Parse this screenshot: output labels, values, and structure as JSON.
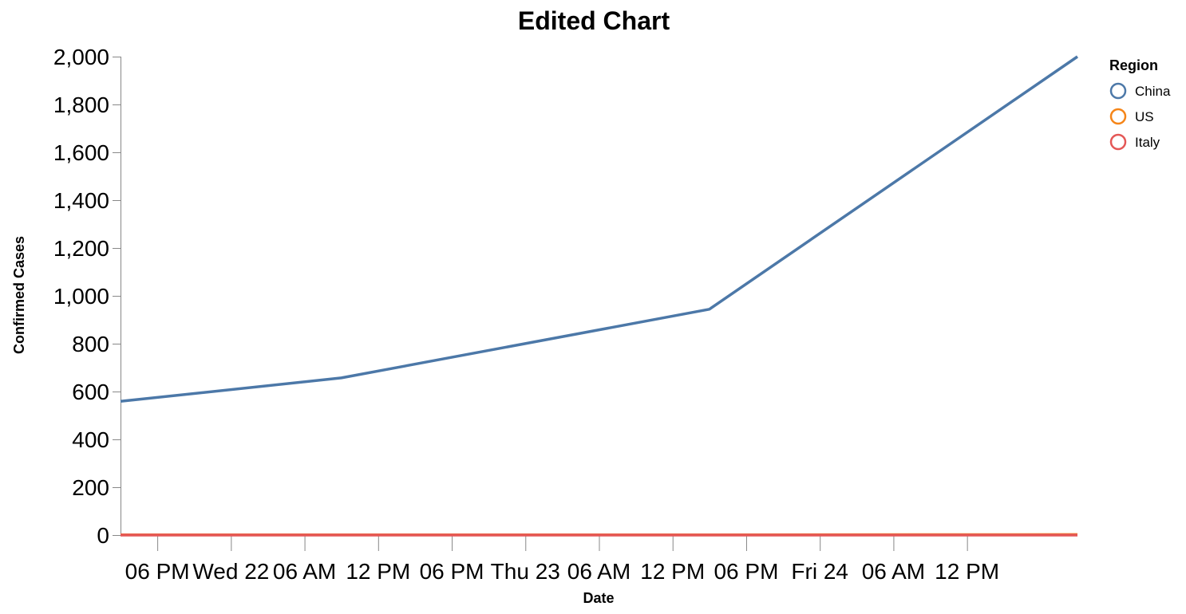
{
  "chart_data": {
    "type": "line",
    "title": "Edited Chart",
    "xlabel": "Date",
    "ylabel": "Confirmed Cases",
    "x_tick_labels": [
      "06 PM",
      "Wed 22",
      "06 AM",
      "12 PM",
      "06 PM",
      "Thu 23",
      "06 AM",
      "12 PM",
      "06 PM",
      "Fri 24",
      "06 AM",
      "12 PM"
    ],
    "y_tick_labels": [
      "0",
      "200",
      "400",
      "600",
      "800",
      "1,000",
      "1,200",
      "1,400",
      "1,600",
      "1,800",
      "2,000"
    ],
    "ylim": [
      0,
      2000
    ],
    "grid": false,
    "legend": {
      "title": "Region",
      "position": "top-right"
    },
    "x": [
      "2020-01-21 15:00",
      "2020-01-22 09:00",
      "2020-01-23 15:00",
      "2020-01-24 21:00"
    ],
    "series": [
      {
        "name": "China",
        "color": "#4c78a8",
        "values": [
          559,
          657,
          944,
          2000
        ]
      },
      {
        "name": "US",
        "color": "#f58518",
        "values": [
          1,
          1,
          1,
          2
        ]
      },
      {
        "name": "Italy",
        "color": "#e45756",
        "values": [
          0,
          0,
          0,
          0
        ]
      }
    ]
  }
}
